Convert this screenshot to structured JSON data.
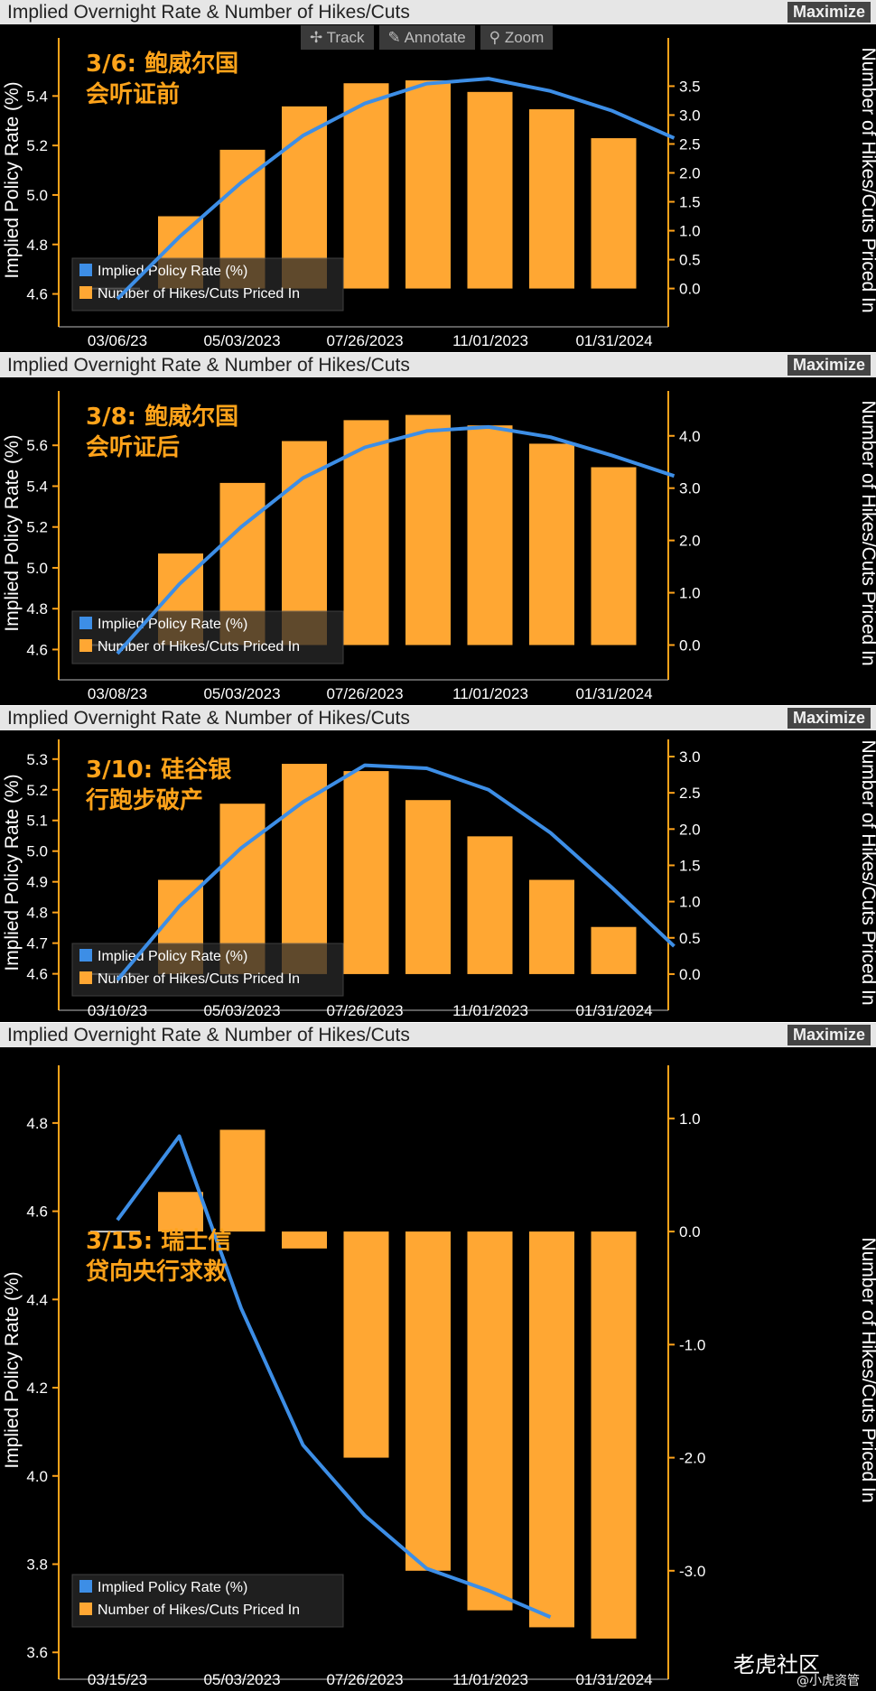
{
  "panels": [
    {
      "title": "Implied Overnight Rate & Number of Hikes/Cuts",
      "maximize": "Maximize",
      "annotation": [
        "3/6: 鲍威尔国",
        "会听证前"
      ],
      "legend": [
        "Implied Policy Rate (%)",
        "Number of Hikes/Cuts Priced In"
      ],
      "toolbar": [
        "Track",
        "Annotate",
        "Zoom"
      ]
    },
    {
      "title": "Implied Overnight Rate & Number of Hikes/Cuts",
      "maximize": "Maximize",
      "annotation": [
        "3/8: 鲍威尔国",
        "会听证后"
      ],
      "legend": [
        "Implied Policy Rate (%)",
        "Number of Hikes/Cuts Priced In"
      ]
    },
    {
      "title": "Implied Overnight Rate & Number of Hikes/Cuts",
      "maximize": "Maximize",
      "annotation": [
        "3/10: 硅谷银",
        "行跑步破产"
      ],
      "legend": [
        "Implied Policy Rate (%)",
        "Number of Hikes/Cuts Priced In"
      ]
    },
    {
      "title": "Implied Overnight Rate & Number of Hikes/Cuts",
      "maximize": "Maximize",
      "annotation": [
        "3/15: 瑞士信",
        "贷向央行求救"
      ],
      "legend": [
        "Implied Policy Rate (%)",
        "Number of Hikes/Cuts Priced In"
      ]
    }
  ],
  "watermark": {
    "main": "老虎社区",
    "sub": "@小虎资管"
  },
  "colors": {
    "bar": "#ffa733",
    "line": "#3d8ee6",
    "axis": "#ffa31a",
    "bg": "#000000",
    "note": "#ffa31a"
  },
  "chart_data": [
    {
      "type": "bar+line",
      "title": "Implied Overnight Rate & Number of Hikes/Cuts",
      "ylabel": "Implied Policy Rate (%)",
      "y2label": "Number of Hikes/Cuts Priced In",
      "xticks": [
        "03/06/23",
        "05/03/2023",
        "07/26/2023",
        "11/01/2023",
        "01/31/2024"
      ],
      "ylim": [
        4.54,
        5.58
      ],
      "yticks": [
        4.6,
        4.8,
        5.0,
        5.2,
        5.4
      ],
      "y2lim": [
        -0.35,
        4.1
      ],
      "y2ticks": [
        0.0,
        0.5,
        1.0,
        1.5,
        2.0,
        2.5,
        3.0,
        3.5
      ],
      "bars": [
        1.25,
        2.4,
        3.15,
        3.55,
        3.6,
        3.4,
        3.1,
        2.6
      ],
      "line": [
        4.58,
        4.83,
        5.05,
        5.24,
        5.37,
        5.45,
        5.47,
        5.42,
        5.34,
        5.23
      ]
    },
    {
      "type": "bar+line",
      "title": "Implied Overnight Rate & Number of Hikes/Cuts",
      "ylabel": "Implied Policy Rate (%)",
      "y2label": "Number of Hikes/Cuts Priced In",
      "xticks": [
        "03/08/23",
        "05/03/2023",
        "07/26/2023",
        "11/01/2023",
        "01/31/2024"
      ],
      "ylim": [
        4.54,
        5.8
      ],
      "yticks": [
        4.6,
        4.8,
        5.0,
        5.2,
        5.4,
        5.6
      ],
      "y2lim": [
        -0.32,
        4.6
      ],
      "y2ticks": [
        0.0,
        1.0,
        2.0,
        3.0,
        4.0
      ],
      "bars": [
        1.75,
        3.1,
        3.9,
        4.3,
        4.4,
        4.2,
        3.85,
        3.4
      ],
      "line": [
        4.58,
        4.92,
        5.2,
        5.44,
        5.59,
        5.67,
        5.69,
        5.64,
        5.55,
        5.45
      ]
    },
    {
      "type": "bar+line",
      "title": "Implied Overnight Rate & Number of Hikes/Cuts",
      "ylabel": "Implied Policy Rate (%)",
      "y2label": "Number of Hikes/Cuts Priced In",
      "xticks": [
        "03/10/23",
        "05/03/2023",
        "07/26/2023",
        "11/01/2023",
        "01/31/2024"
      ],
      "ylim": [
        4.54,
        5.32
      ],
      "yticks": [
        4.6,
        4.7,
        4.8,
        4.9,
        5.0,
        5.1,
        5.2,
        5.3
      ],
      "y2lim": [
        -0.25,
        3.05
      ],
      "y2ticks": [
        0.0,
        0.5,
        1.0,
        1.5,
        2.0,
        2.5,
        3.0
      ],
      "bars": [
        1.3,
        2.35,
        2.9,
        2.8,
        2.4,
        1.9,
        1.3,
        0.65
      ],
      "line": [
        4.58,
        4.82,
        5.01,
        5.16,
        5.28,
        5.27,
        5.2,
        5.06,
        4.88,
        4.69
      ]
    },
    {
      "type": "bar+line",
      "title": "Implied Overnight Rate & Number of Hikes/Cuts",
      "ylabel": "Implied Policy Rate (%)",
      "y2label": "Number of Hikes/Cuts Priced In",
      "xticks": [
        "03/15/23",
        "05/03/2023",
        "07/26/2023",
        "11/01/2023",
        "01/31/2024"
      ],
      "ylim": [
        3.58,
        4.9
      ],
      "yticks": [
        3.6,
        3.8,
        4.0,
        4.2,
        4.4,
        4.6,
        4.8
      ],
      "y2lim": [
        -3.8,
        1.35
      ],
      "y2ticks": [
        1.0,
        0.0,
        -1.0,
        -2.0,
        -3.0
      ],
      "y2ticklabels": [
        "1.0",
        "0.0",
        "-1.0",
        "-2.0",
        "-3.0"
      ],
      "bars": [
        0.35,
        0.9,
        -0.15,
        -2.0,
        -3.0,
        -3.35,
        -3.5,
        -3.6
      ],
      "line": [
        4.58,
        4.77,
        4.38,
        4.07,
        3.91,
        3.79,
        3.74,
        3.68
      ]
    }
  ]
}
